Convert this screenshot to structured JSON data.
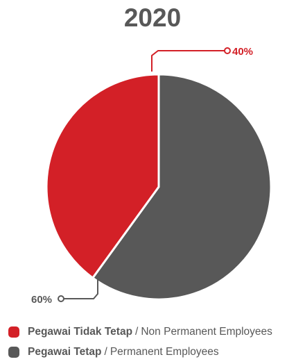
{
  "chart_data": {
    "type": "pie",
    "title": "2020",
    "slices": [
      {
        "value_label": "40%",
        "value": 40,
        "color": "#d32027",
        "legend_bold": "Pegawai Tidak Tetap",
        "legend_separator": "/",
        "legend_normal": "Non Permanent Employees"
      },
      {
        "value_label": "60%",
        "value": 60,
        "color": "#585858",
        "legend_bold": "Pegawai Tetap",
        "legend_separator": "/",
        "legend_normal": "Permanent Employees"
      }
    ],
    "legend_position": "bottom-left"
  }
}
